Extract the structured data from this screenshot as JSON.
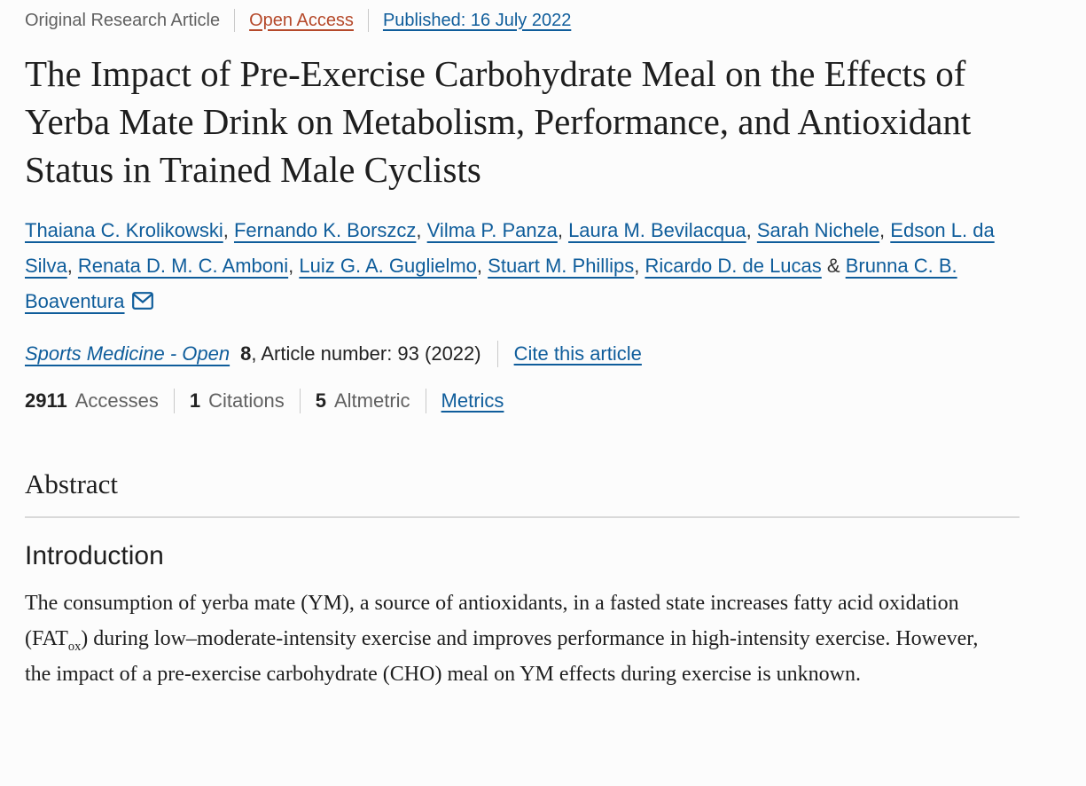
{
  "colors": {
    "link_blue": "#0f5d9b",
    "open_access": "#b5492a",
    "text_dark": "#222222",
    "text_gray": "#616161",
    "separator": "#c9c9c9",
    "rule": "#d9d9d9"
  },
  "header_meta": {
    "article_type": "Original Research Article",
    "open_access_label": "Open Access",
    "published_label": "Published: 16 July 2022"
  },
  "title": "The Impact of Pre-Exercise Carbohydrate Meal on the Effects of Yerba Mate Drink on Metabolism, Performance, and Antioxidant Status in Trained Male Cyclists",
  "authors": [
    "Thaiana C. Krolikowski",
    "Fernando K. Borszcz",
    "Vilma P. Panza",
    "Laura M. Bevilacqua",
    "Sarah Nichele",
    "Edson L. da Silva",
    "Renata D. M. C. Amboni",
    "Luiz G. A. Guglielmo",
    "Stuart M. Phillips",
    "Ricardo D. de Lucas",
    "Brunna C. B. Boaventura"
  ],
  "journal": {
    "name": "Sports Medicine - Open",
    "volume": "8",
    "article_info": ", Article number: 93 (2022)",
    "cite_label": "Cite this article"
  },
  "metrics": [
    {
      "value": "2911",
      "label": "Accesses"
    },
    {
      "value": "1",
      "label": "Citations"
    },
    {
      "value": "5",
      "label": "Altmetric"
    }
  ],
  "metrics_link_label": "Metrics",
  "abstract": {
    "heading": "Abstract",
    "intro_heading": "Introduction",
    "intro_text_before_sub": "The consumption of yerba mate (YM), a source of antioxidants, in a fasted state increases fatty acid oxidation (FAT",
    "intro_text_sub": "ox",
    "intro_text_after_sub": ") during low–moderate-intensity exercise and improves performance in high-intensity exercise. However, the impact of a pre-exercise carbohydrate (CHO) meal on YM effects during exercise is unknown."
  }
}
